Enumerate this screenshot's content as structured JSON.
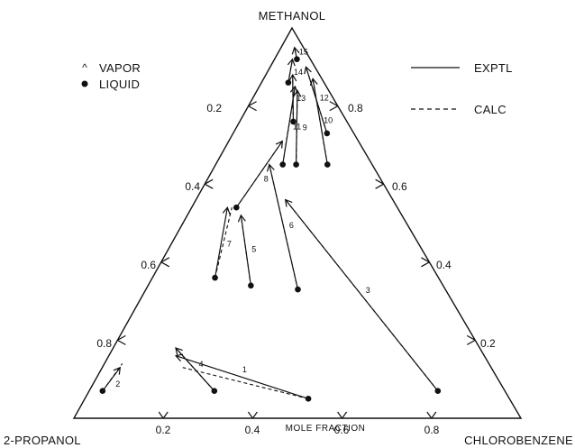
{
  "chart_data": {
    "type": "ternary",
    "vertex_labels": {
      "top": "METHANOL",
      "bottom_left": "2-PROPANOL",
      "bottom_right": "CHLOROBENZENE"
    },
    "axis_title": "MOLE FRACTION",
    "bottom_ticks": [
      "0.2",
      "0.4",
      "0.6",
      "0.8"
    ],
    "left_ticks": [
      "0.2",
      "0.4",
      "0.6",
      "0.8"
    ],
    "right_ticks": [
      "0.8",
      "0.6",
      "0.4",
      "0.2"
    ],
    "legend": {
      "vapor": "VAPOR",
      "liquid": "LIQUID",
      "exptl": "EXPTL",
      "calc": "CALC"
    },
    "tie_lines": [
      {
        "label": "1",
        "liquid": {
          "methanol": 0.05,
          "chlorobenzene": 0.5
        },
        "vapor_exptl": {
          "methanol": 0.16,
          "chlorobenzene": 0.15
        },
        "vapor_calc": {
          "methanol": 0.13,
          "chlorobenzene": 0.18
        }
      },
      {
        "label": "2",
        "liquid": {
          "methanol": 0.07,
          "chlorobenzene": 0.03
        },
        "vapor_exptl": {
          "methanol": 0.13,
          "chlorobenzene": 0.04
        },
        "vapor_calc": {
          "methanol": 0.14,
          "chlorobenzene": 0.04
        }
      },
      {
        "label": "3",
        "liquid": {
          "methanol": 0.07,
          "chlorobenzene": 0.78
        },
        "vapor_exptl": {
          "methanol": 0.56,
          "chlorobenzene": 0.2
        },
        "vapor_calc": {
          "methanol": 0.56,
          "chlorobenzene": 0.2
        }
      },
      {
        "label": "4",
        "liquid": {
          "methanol": 0.07,
          "chlorobenzene": 0.28
        },
        "vapor_exptl": {
          "methanol": 0.18,
          "chlorobenzene": 0.14
        },
        "vapor_calc": {
          "methanol": 0.18,
          "chlorobenzene": 0.14
        }
      },
      {
        "label": "5",
        "liquid": {
          "methanol": 0.34,
          "chlorobenzene": 0.23
        },
        "vapor_exptl": {
          "methanol": 0.52,
          "chlorobenzene": 0.12
        },
        "vapor_calc": {
          "methanol": 0.52,
          "chlorobenzene": 0.12
        }
      },
      {
        "label": "6",
        "liquid": {
          "methanol": 0.33,
          "chlorobenzene": 0.34
        },
        "vapor_exptl": {
          "methanol": 0.65,
          "chlorobenzene": 0.12
        },
        "vapor_calc": {
          "methanol": 0.65,
          "chlorobenzene": 0.12
        }
      },
      {
        "label": "7",
        "liquid": {
          "methanol": 0.36,
          "chlorobenzene": 0.14
        },
        "vapor_exptl": {
          "methanol": 0.54,
          "chlorobenzene": 0.08
        },
        "vapor_calc": {
          "methanol": 0.54,
          "chlorobenzene": 0.09
        }
      },
      {
        "label": "8",
        "liquid": {
          "methanol": 0.54,
          "chlorobenzene": 0.1
        },
        "vapor_exptl": {
          "methanol": 0.71,
          "chlorobenzene": 0.12
        },
        "vapor_calc": {
          "methanol": 0.71,
          "chlorobenzene": 0.12
        }
      },
      {
        "label": "9",
        "liquid": {
          "methanol": 0.65,
          "chlorobenzene": 0.18
        },
        "vapor_exptl": {
          "methanol": 0.84,
          "chlorobenzene": 0.09
        },
        "vapor_calc": {
          "methanol": 0.84,
          "chlorobenzene": 0.09
        }
      },
      {
        "label": "10",
        "liquid": {
          "methanol": 0.65,
          "chlorobenzene": 0.25
        },
        "vapor_exptl": {
          "methanol": 0.87,
          "chlorobenzene": 0.11
        },
        "vapor_calc": {
          "methanol": 0.87,
          "chlorobenzene": 0.11
        }
      },
      {
        "label": "11",
        "liquid": {
          "methanol": 0.65,
          "chlorobenzene": 0.15
        },
        "vapor_exptl": {
          "methanol": 0.85,
          "chlorobenzene": 0.08
        },
        "vapor_calc": {
          "methanol": 0.85,
          "chlorobenzene": 0.08
        }
      },
      {
        "label": "12",
        "liquid": {
          "methanol": 0.73,
          "chlorobenzene": 0.21
        },
        "vapor_exptl": {
          "methanol": 0.9,
          "chlorobenzene": 0.08
        },
        "vapor_calc": {
          "methanol": 0.9,
          "chlorobenzene": 0.08
        }
      },
      {
        "label": "13",
        "liquid": {
          "methanol": 0.76,
          "chlorobenzene": 0.12
        },
        "vapor_exptl": {
          "methanol": 0.88,
          "chlorobenzene": 0.06
        },
        "vapor_calc": {
          "methanol": 0.88,
          "chlorobenzene": 0.06
        }
      },
      {
        "label": "14",
        "liquid": {
          "methanol": 0.86,
          "chlorobenzene": 0.06
        },
        "vapor_exptl": {
          "methanol": 0.92,
          "chlorobenzene": 0.04
        },
        "vapor_calc": {
          "methanol": 0.92,
          "chlorobenzene": 0.04
        }
      },
      {
        "label": "15",
        "liquid": {
          "methanol": 0.92,
          "chlorobenzene": 0.05
        },
        "vapor_exptl": {
          "methanol": 0.95,
          "chlorobenzene": 0.03
        },
        "vapor_calc": {
          "methanol": 0.95,
          "chlorobenzene": 0.03
        }
      }
    ]
  }
}
